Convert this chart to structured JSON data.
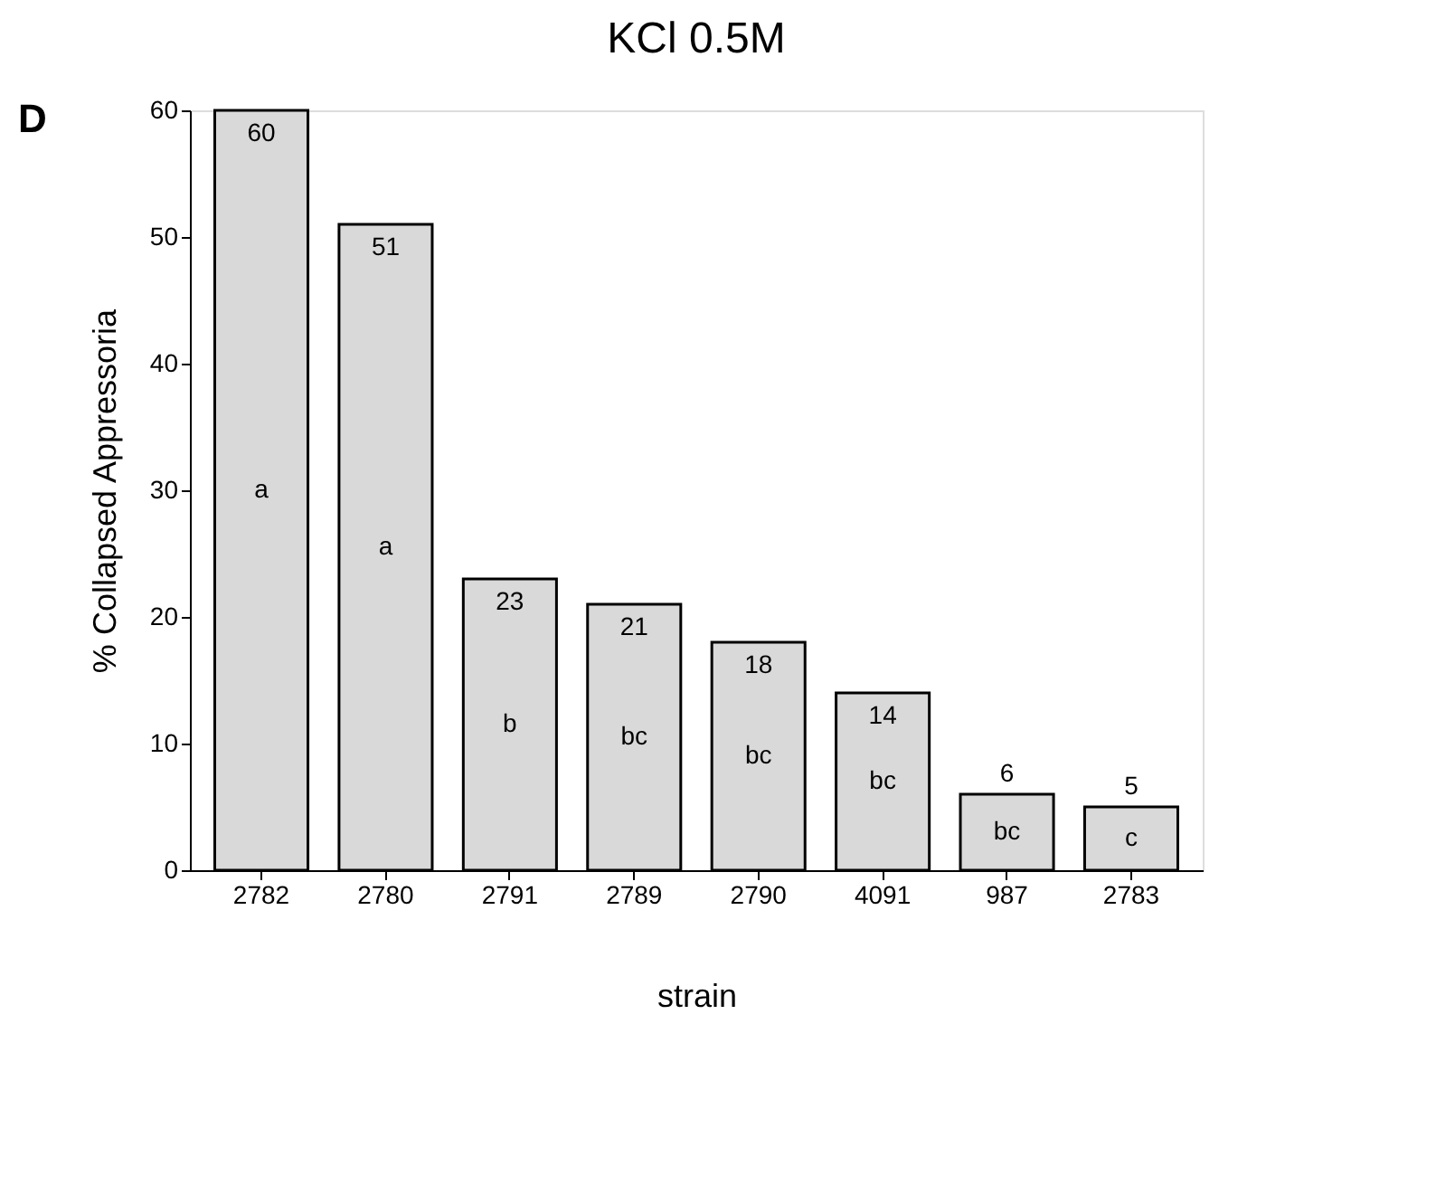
{
  "chart_data": {
    "type": "bar",
    "title": "KCl 0.5M",
    "xlabel": "strain",
    "ylabel": "% Collapsed Appressoria",
    "categories": [
      "2782",
      "2780",
      "2791",
      "2789",
      "2790",
      "4091",
      "987",
      "2783"
    ],
    "values": [
      60,
      51,
      23,
      21,
      18,
      14,
      6,
      5
    ],
    "color": "#d9d9d9",
    "data_labels": true,
    "ylim": [
      0,
      60
    ],
    "yticks": [
      0,
      10,
      20,
      30,
      40,
      50,
      60
    ],
    "grid": false,
    "annotations": [
      "D",
      "a",
      "a",
      "b",
      "bc",
      "bc",
      "bc",
      "bc",
      "c"
    ]
  }
}
